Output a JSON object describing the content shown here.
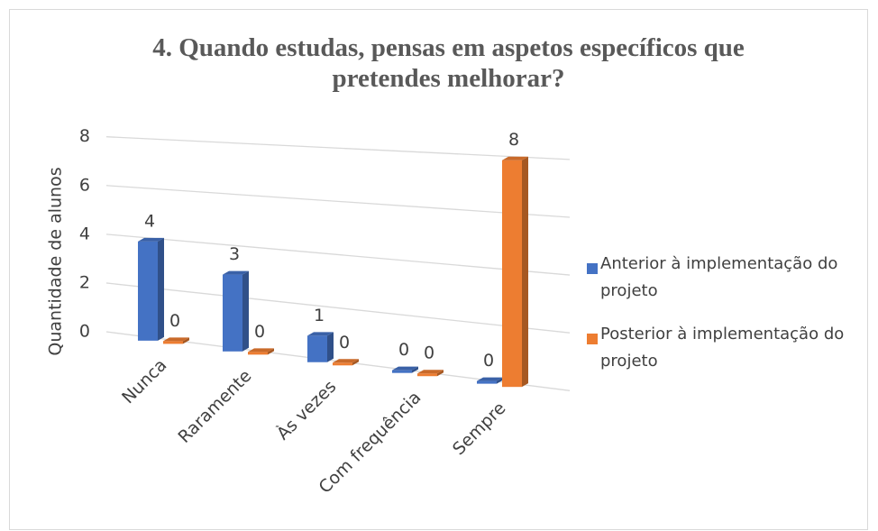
{
  "chart_data": {
    "type": "bar3d",
    "title": "4. Quando estudas, pensas em aspetos específicos que pretendes melhorar?",
    "y_label": "Quantidade de alunos",
    "categories": [
      "Nunca",
      "Raramente",
      "Às vezes",
      "Com frequência",
      "Sempre"
    ],
    "series": [
      {
        "name": "Anterior à implementação do projeto",
        "color": "#4472c4",
        "values": [
          4,
          3,
          1,
          0,
          0
        ]
      },
      {
        "name": "Posterior à implementação do projeto",
        "color": "#ed7d31",
        "values": [
          0,
          0,
          0,
          0,
          8
        ]
      }
    ],
    "ylim": [
      0,
      8
    ],
    "yticks": [
      0,
      2,
      4,
      6,
      8
    ],
    "grid": true,
    "legend": "right"
  }
}
